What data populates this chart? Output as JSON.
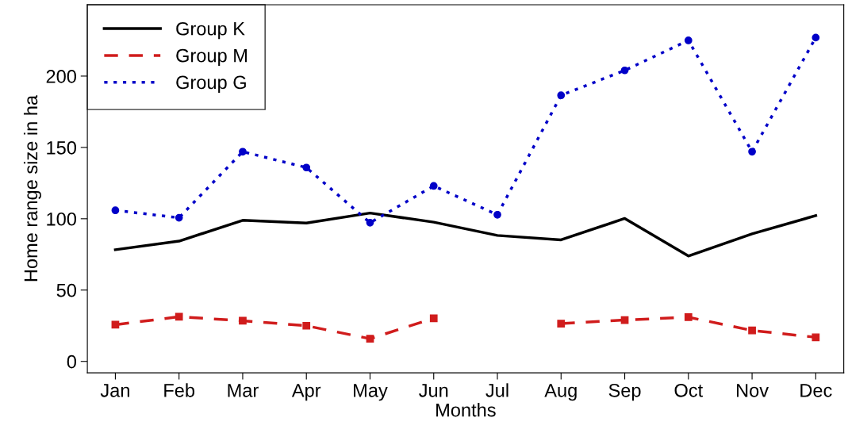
{
  "chart_data": {
    "type": "line",
    "xlabel": "Months",
    "ylabel": "Home range size in ha",
    "categories": [
      "Jan",
      "Feb",
      "Mar",
      "Apr",
      "May",
      "Jun",
      "Jul",
      "Aug",
      "Sep",
      "Oct",
      "Nov",
      "Dec"
    ],
    "series": [
      {
        "name": "Group K",
        "color": "#000000",
        "line_style": "solid",
        "marker": "none",
        "values": [
          78.3,
          84.3,
          98.9,
          97,
          104,
          97.6,
          88.3,
          85.2,
          100.2,
          73.9,
          89.4,
          102.2
        ]
      },
      {
        "name": "Group M",
        "color": "#d01c1c",
        "line_style": "dashed",
        "marker": "square",
        "values": [
          25.7,
          31.3,
          28.5,
          25,
          15.9,
          30.2,
          null,
          26.5,
          29,
          31,
          21.7,
          16.9
        ]
      },
      {
        "name": "Group G",
        "color": "#0000c8",
        "line_style": "dotted",
        "marker": "circle",
        "values": [
          105.9,
          100.7,
          147,
          135.9,
          97.2,
          123,
          102.8,
          186.5,
          204,
          225,
          147,
          227
        ]
      }
    ],
    "ylim": [
      -8,
      250
    ],
    "yticks": [
      0,
      50,
      100,
      150,
      200
    ],
    "grid": false,
    "legend": "top left"
  }
}
